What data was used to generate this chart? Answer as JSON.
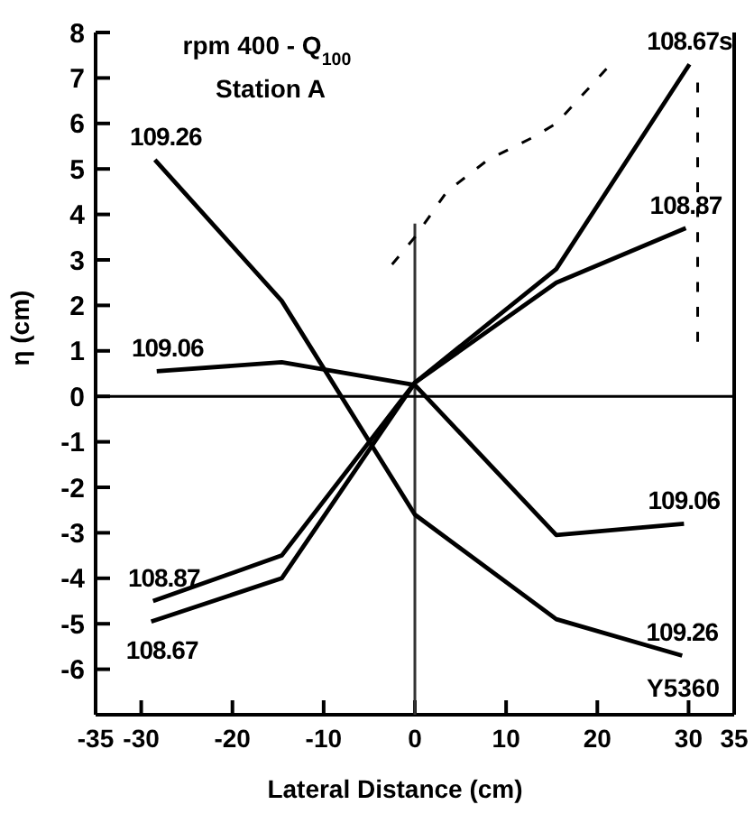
{
  "chart_data": {
    "type": "line",
    "title": "rpm 400 - Q$_{100}$",
    "subtitle": "Station A",
    "xlabel": "Lateral Distance (cm)",
    "ylabel": "η (cm)",
    "xlim": [
      -35,
      35
    ],
    "xticks": [
      -35,
      -30,
      -20,
      -10,
      0,
      10,
      20,
      30,
      35
    ],
    "ylim": [
      -7,
      8
    ],
    "yticks": [
      -6,
      -5,
      -4,
      -3,
      -2,
      -1,
      0,
      1,
      2,
      3,
      4,
      5,
      6,
      7,
      8
    ],
    "grid": false,
    "marker": "none",
    "ref_lines": [
      {
        "axis": "x",
        "value": 0,
        "color": "#333333"
      },
      {
        "axis": "y",
        "value": 0,
        "color": "#000000"
      }
    ],
    "series": [
      {
        "color": "#000000",
        "x": [
          -28.5,
          -14.6,
          0,
          15.5,
          29.3
        ],
        "values": [
          5.2,
          2.1,
          -2.6,
          -4.9,
          -5.7
        ]
      },
      {
        "color": "#000000",
        "x": [
          -28.3,
          -14.6,
          0,
          15.5,
          29.5
        ],
        "values": [
          0.55,
          0.75,
          0.25,
          -3.05,
          -2.8
        ]
      },
      {
        "color": "#000000",
        "x": [
          -28.7,
          -14.6,
          0,
          15.5,
          29.7
        ],
        "values": [
          -4.5,
          -3.5,
          0.3,
          2.5,
          3.7
        ]
      },
      {
        "color": "#000000",
        "x": [
          -28.9,
          -14.6,
          0,
          15.5,
          30.1
        ],
        "values": [
          -4.95,
          -4,
          0.3,
          2.8,
          7.3
        ]
      },
      {
        "color": "#000000",
        "line_style": "dashed",
        "x": [
          -2.5,
          0,
          3.5,
          8,
          13,
          15.5,
          21
        ],
        "values": [
          2.9,
          3.5,
          4.5,
          5.2,
          5.7,
          6,
          7.2
        ]
      },
      {
        "color": "#000000",
        "line_style": "dashed",
        "x": [
          31,
          31,
          31
        ],
        "values": [
          6.9,
          3.3,
          1.2
        ]
      }
    ],
    "annotations": [
      {
        "text": "109.26",
        "x": -28.5,
        "y": 5.2
      },
      {
        "text": "109.06",
        "x": -28.3,
        "y": 0.55
      },
      {
        "text": "108.87",
        "x": -28.7,
        "y": -4.5
      },
      {
        "text": "108.67",
        "x": -28.9,
        "y": -4.95
      },
      {
        "text": "108.67s",
        "x": 30.1,
        "y": 7.3
      },
      {
        "text": "108.87",
        "x": 29.7,
        "y": 3.7
      },
      {
        "text": "109.06",
        "x": 29.5,
        "y": -2.8
      },
      {
        "text": "109.26",
        "x": 29.3,
        "y": -5.7
      },
      "Y5360"
    ]
  }
}
